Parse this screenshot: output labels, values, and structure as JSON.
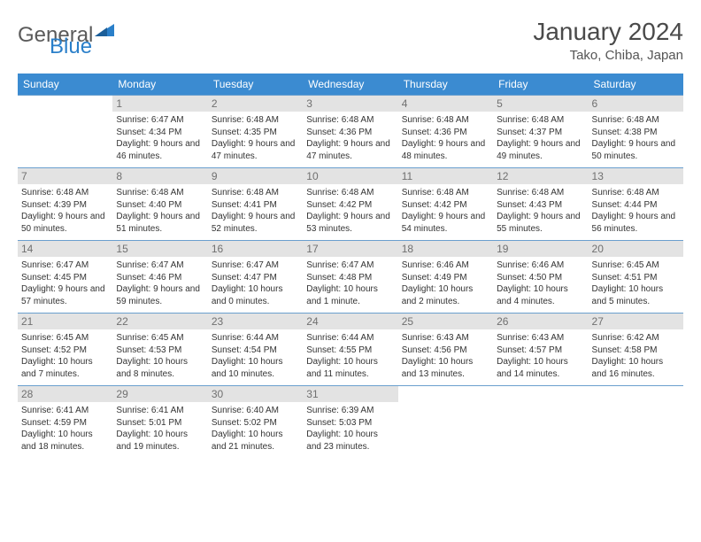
{
  "brand": {
    "part1": "General",
    "part2": "Blue",
    "tri_color": "#2a7fc9"
  },
  "title": "January 2024",
  "location": "Tako, Chiba, Japan",
  "colors": {
    "header_bg": "#3b8bd1",
    "row_border": "#6a9fce",
    "daynum_bg": "#e3e3e3",
    "daynum_text": "#707070",
    "text": "#333333"
  },
  "day_headers": [
    "Sunday",
    "Monday",
    "Tuesday",
    "Wednesday",
    "Thursday",
    "Friday",
    "Saturday"
  ],
  "weeks": [
    [
      null,
      {
        "n": "1",
        "sr": "6:47 AM",
        "ss": "4:34 PM",
        "dl": "9 hours and 46 minutes."
      },
      {
        "n": "2",
        "sr": "6:48 AM",
        "ss": "4:35 PM",
        "dl": "9 hours and 47 minutes."
      },
      {
        "n": "3",
        "sr": "6:48 AM",
        "ss": "4:36 PM",
        "dl": "9 hours and 47 minutes."
      },
      {
        "n": "4",
        "sr": "6:48 AM",
        "ss": "4:36 PM",
        "dl": "9 hours and 48 minutes."
      },
      {
        "n": "5",
        "sr": "6:48 AM",
        "ss": "4:37 PM",
        "dl": "9 hours and 49 minutes."
      },
      {
        "n": "6",
        "sr": "6:48 AM",
        "ss": "4:38 PM",
        "dl": "9 hours and 50 minutes."
      }
    ],
    [
      {
        "n": "7",
        "sr": "6:48 AM",
        "ss": "4:39 PM",
        "dl": "9 hours and 50 minutes."
      },
      {
        "n": "8",
        "sr": "6:48 AM",
        "ss": "4:40 PM",
        "dl": "9 hours and 51 minutes."
      },
      {
        "n": "9",
        "sr": "6:48 AM",
        "ss": "4:41 PM",
        "dl": "9 hours and 52 minutes."
      },
      {
        "n": "10",
        "sr": "6:48 AM",
        "ss": "4:42 PM",
        "dl": "9 hours and 53 minutes."
      },
      {
        "n": "11",
        "sr": "6:48 AM",
        "ss": "4:42 PM",
        "dl": "9 hours and 54 minutes."
      },
      {
        "n": "12",
        "sr": "6:48 AM",
        "ss": "4:43 PM",
        "dl": "9 hours and 55 minutes."
      },
      {
        "n": "13",
        "sr": "6:48 AM",
        "ss": "4:44 PM",
        "dl": "9 hours and 56 minutes."
      }
    ],
    [
      {
        "n": "14",
        "sr": "6:47 AM",
        "ss": "4:45 PM",
        "dl": "9 hours and 57 minutes."
      },
      {
        "n": "15",
        "sr": "6:47 AM",
        "ss": "4:46 PM",
        "dl": "9 hours and 59 minutes."
      },
      {
        "n": "16",
        "sr": "6:47 AM",
        "ss": "4:47 PM",
        "dl": "10 hours and 0 minutes."
      },
      {
        "n": "17",
        "sr": "6:47 AM",
        "ss": "4:48 PM",
        "dl": "10 hours and 1 minute."
      },
      {
        "n": "18",
        "sr": "6:46 AM",
        "ss": "4:49 PM",
        "dl": "10 hours and 2 minutes."
      },
      {
        "n": "19",
        "sr": "6:46 AM",
        "ss": "4:50 PM",
        "dl": "10 hours and 4 minutes."
      },
      {
        "n": "20",
        "sr": "6:45 AM",
        "ss": "4:51 PM",
        "dl": "10 hours and 5 minutes."
      }
    ],
    [
      {
        "n": "21",
        "sr": "6:45 AM",
        "ss": "4:52 PM",
        "dl": "10 hours and 7 minutes."
      },
      {
        "n": "22",
        "sr": "6:45 AM",
        "ss": "4:53 PM",
        "dl": "10 hours and 8 minutes."
      },
      {
        "n": "23",
        "sr": "6:44 AM",
        "ss": "4:54 PM",
        "dl": "10 hours and 10 minutes."
      },
      {
        "n": "24",
        "sr": "6:44 AM",
        "ss": "4:55 PM",
        "dl": "10 hours and 11 minutes."
      },
      {
        "n": "25",
        "sr": "6:43 AM",
        "ss": "4:56 PM",
        "dl": "10 hours and 13 minutes."
      },
      {
        "n": "26",
        "sr": "6:43 AM",
        "ss": "4:57 PM",
        "dl": "10 hours and 14 minutes."
      },
      {
        "n": "27",
        "sr": "6:42 AM",
        "ss": "4:58 PM",
        "dl": "10 hours and 16 minutes."
      }
    ],
    [
      {
        "n": "28",
        "sr": "6:41 AM",
        "ss": "4:59 PM",
        "dl": "10 hours and 18 minutes."
      },
      {
        "n": "29",
        "sr": "6:41 AM",
        "ss": "5:01 PM",
        "dl": "10 hours and 19 minutes."
      },
      {
        "n": "30",
        "sr": "6:40 AM",
        "ss": "5:02 PM",
        "dl": "10 hours and 21 minutes."
      },
      {
        "n": "31",
        "sr": "6:39 AM",
        "ss": "5:03 PM",
        "dl": "10 hours and 23 minutes."
      },
      null,
      null,
      null
    ]
  ],
  "labels": {
    "sunrise": "Sunrise:",
    "sunset": "Sunset:",
    "daylight": "Daylight:"
  }
}
